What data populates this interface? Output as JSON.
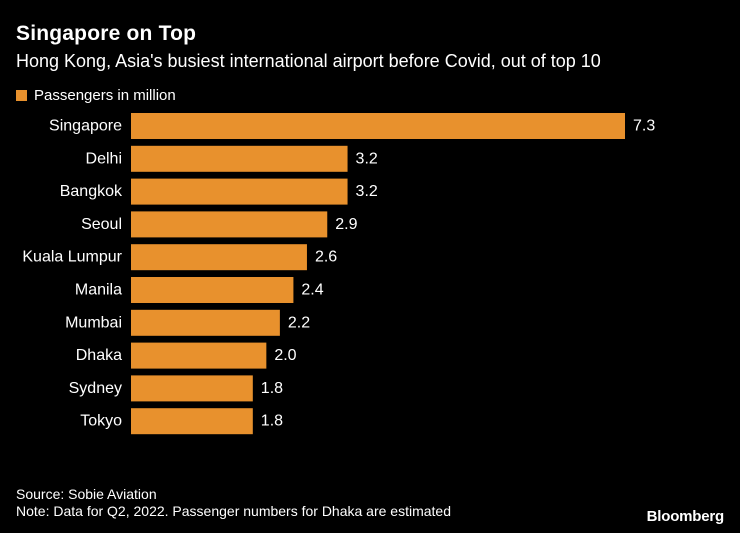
{
  "header": {
    "title": "Singapore on Top",
    "subtitle": "Hong Kong, Asia's busiest international airport before Covid, out of top 10"
  },
  "chart_data": {
    "type": "bar",
    "orientation": "horizontal",
    "title": "Singapore on Top",
    "subtitle": "Hong Kong, Asia's busiest international airport before Covid, out of top 10",
    "categories": [
      "Singapore",
      "Delhi",
      "Bangkok",
      "Seoul",
      "Kuala Lumpur",
      "Manila",
      "Mumbai",
      "Dhaka",
      "Sydney",
      "Tokyo"
    ],
    "series": [
      {
        "name": "Passengers in million",
        "values": [
          7.3,
          3.2,
          3.2,
          2.9,
          2.6,
          2.4,
          2.2,
          2.0,
          1.8,
          1.8
        ],
        "labels": [
          "7.3",
          "3.2",
          "3.2",
          "2.9",
          "2.6",
          "2.4",
          "2.2",
          "2.0",
          "1.8",
          "1.8"
        ],
        "color": "#e8912d"
      }
    ],
    "xlabel": "",
    "ylabel": "",
    "xlim": [
      0,
      7.3
    ],
    "grid": false,
    "legend_position": "top-left"
  },
  "footer": {
    "source": "Source: Sobie Aviation",
    "note": "Note: Data for Q2, 2022. Passenger numbers for Dhaka are estimated",
    "brand": "Bloomberg"
  },
  "colors": {
    "background": "#000000",
    "bar": "#e8912d",
    "text": "#ffffff"
  }
}
